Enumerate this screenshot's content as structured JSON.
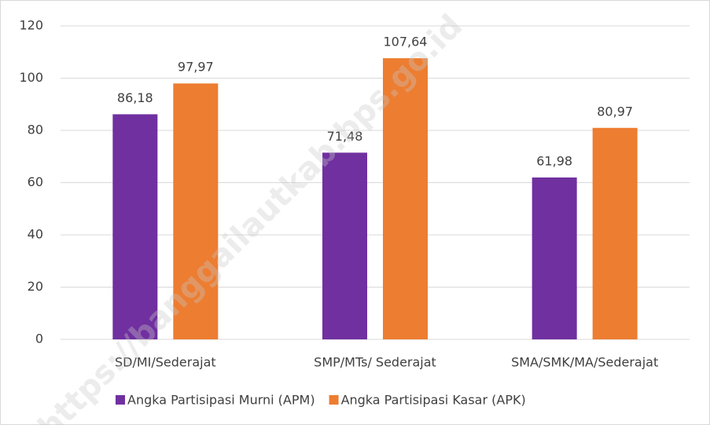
{
  "chart_data": {
    "type": "bar",
    "categories": [
      "SD/MI/Sederajat",
      "SMP/MTs/ Sederajat",
      "SMA/SMK/MA/Sederajat"
    ],
    "series": [
      {
        "name": "Angka Partisipasi Murni (APM)",
        "color": "#7030a0",
        "values": [
          86.18,
          71.48,
          61.98
        ],
        "value_labels": [
          "86,18",
          "71,48",
          "61,98"
        ]
      },
      {
        "name": "Angka Partisipasi Kasar (APK)",
        "color": "#ed7d31",
        "values": [
          97.97,
          107.64,
          80.97
        ],
        "value_labels": [
          "97,97",
          "107,64",
          "80,97"
        ]
      }
    ],
    "ylim": [
      0,
      120
    ],
    "yticks": [
      0,
      20,
      40,
      60,
      80,
      100,
      120
    ],
    "grid": true,
    "legend": "bottom",
    "watermark": "https://banggailautkab.bps.go.id"
  }
}
